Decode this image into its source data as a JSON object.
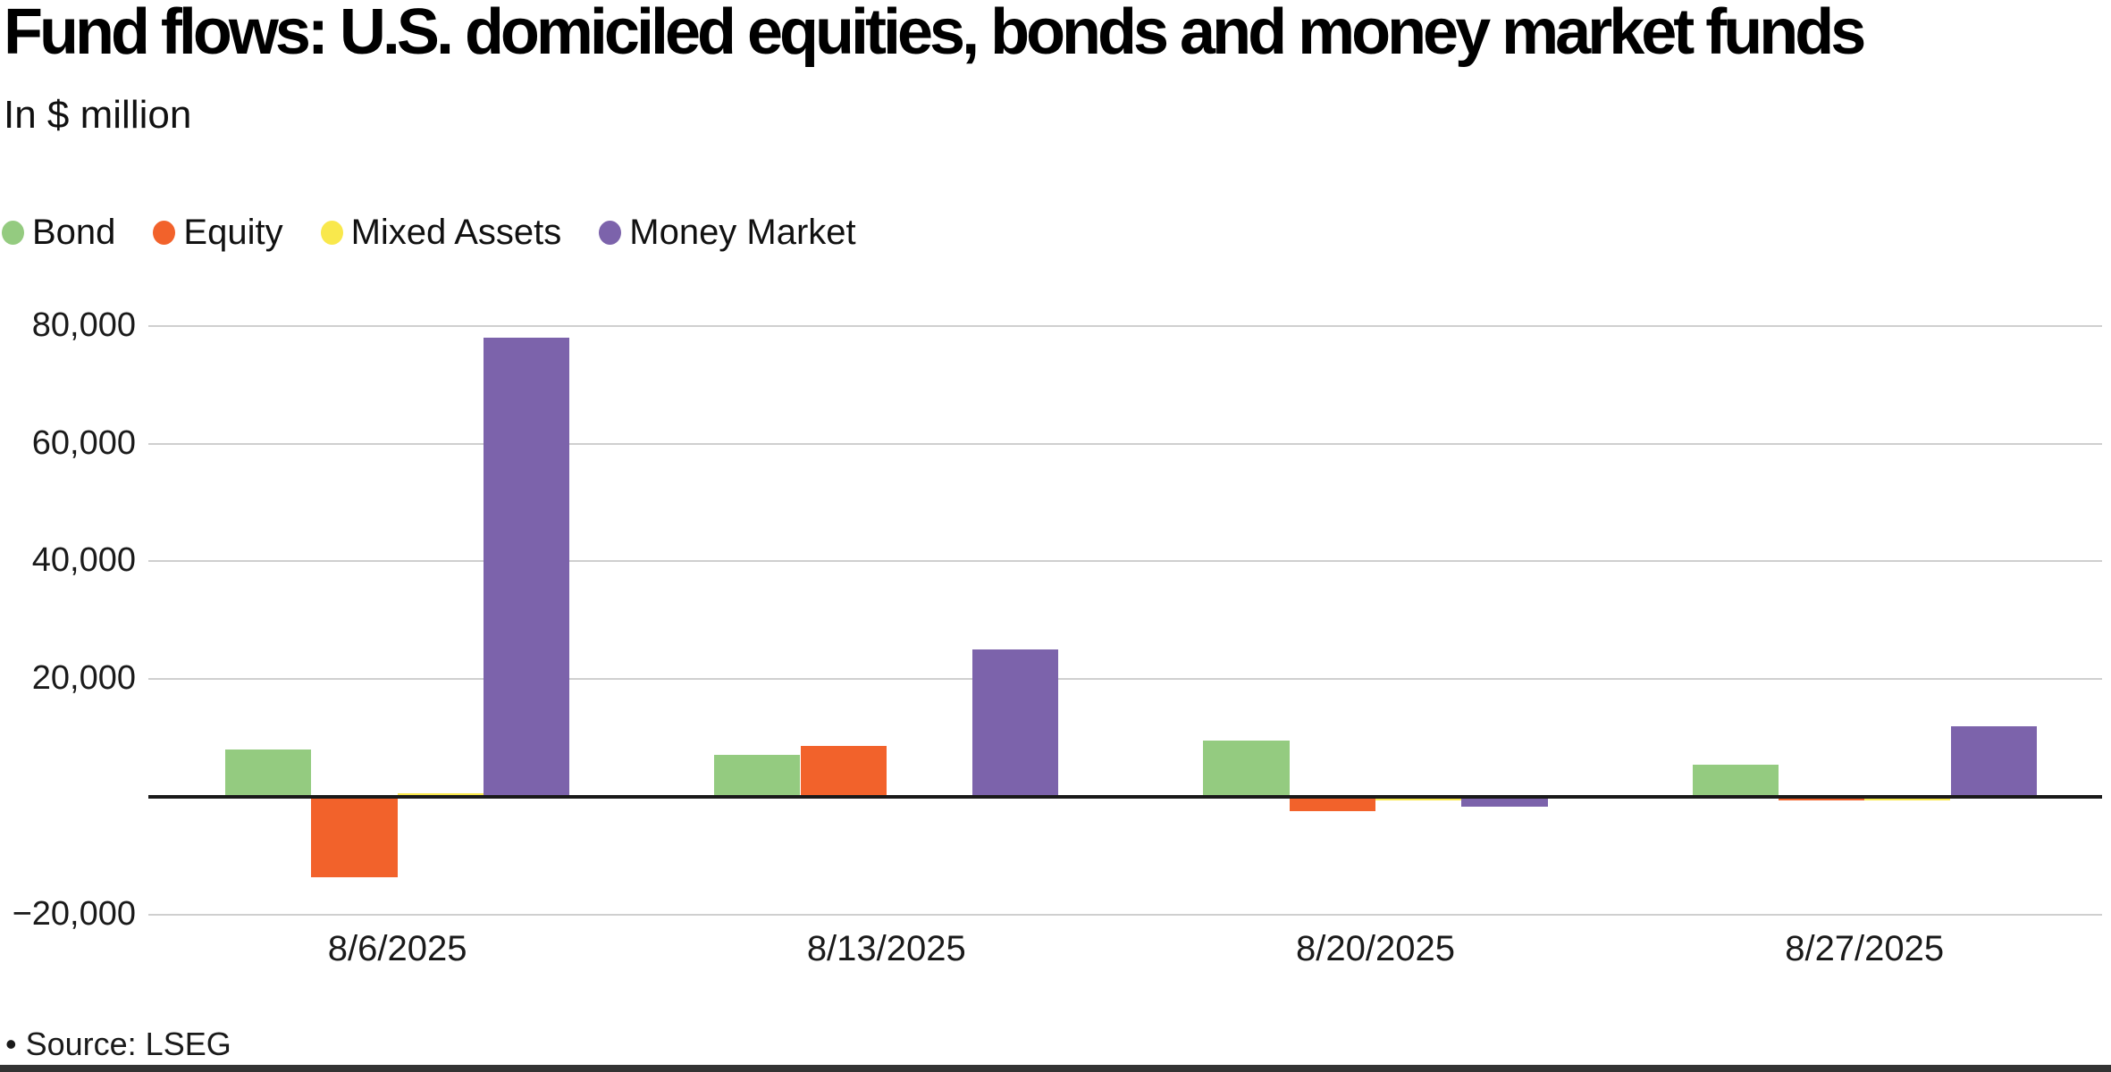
{
  "header": {
    "title": "Fund flows: U.S. domiciled equities, bonds and money market funds",
    "subtitle": "In $ million"
  },
  "legend": [
    {
      "label": "Bond",
      "color": "#94CB80"
    },
    {
      "label": "Equity",
      "color": "#F2622B"
    },
    {
      "label": "Mixed Assets",
      "color": "#F9E84C"
    },
    {
      "label": "Money Market",
      "color": "#7C63AB"
    }
  ],
  "chart_data": {
    "type": "bar",
    "title": "Fund flows: U.S. domiciled equities, bonds and money market funds",
    "units_label": "In $ million",
    "categories": [
      "8/6/2025",
      "8/13/2025",
      "8/20/2025",
      "8/27/2025"
    ],
    "series": [
      {
        "name": "Bond",
        "color": "#94CB80",
        "values": [
          8000,
          7200,
          9600,
          5500
        ]
      },
      {
        "name": "Equity",
        "color": "#F2622B",
        "values": [
          -13700,
          8600,
          -2400,
          -300
        ]
      },
      {
        "name": "Mixed Assets",
        "color": "#F9E84C",
        "values": [
          200,
          0,
          -300,
          -400
        ]
      },
      {
        "name": "Money Market",
        "color": "#7C63AB",
        "values": [
          78000,
          25000,
          -1600,
          12000
        ]
      }
    ],
    "yticks": [
      80000,
      60000,
      40000,
      20000,
      -20000
    ],
    "ylim": [
      -20000,
      80000
    ],
    "grid": true,
    "legend_position": "top-left",
    "zero_baseline": true
  },
  "footer": {
    "source": "• Source: LSEG"
  }
}
